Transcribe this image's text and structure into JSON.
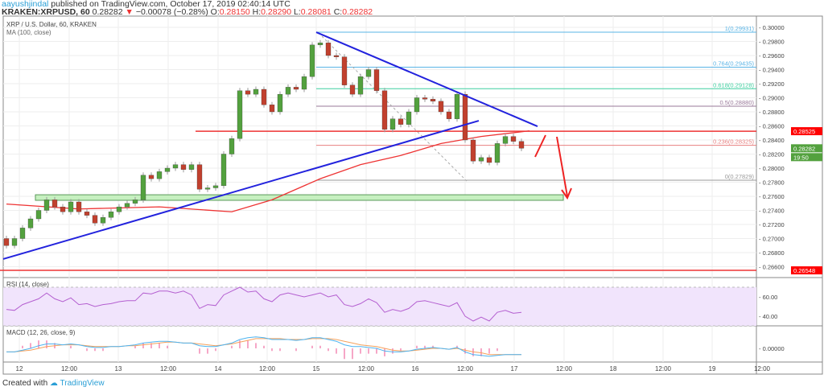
{
  "header": {
    "user": "aayushjindal",
    "published": " published on TradingView.com, October 17, 2019 02:40:14 UTC",
    "symbol": "KRAKEN:XRPUSD, 60",
    "last": "0.28282",
    "arrow": "▼",
    "change": "−0.00078 (−0.28%)",
    "o_label": "O:",
    "o": "0.28150",
    "h_label": "H:",
    "h": "0.28290",
    "l_label": "L:",
    "l": "0.28081",
    "c_label": "C:",
    "c": "0.28282"
  },
  "footer": {
    "created": "Created with",
    "brand": "TradingView"
  },
  "colors": {
    "up": "#53a13e",
    "down": "#c1402e",
    "ma": "#ee3333",
    "trend": "#2222dd",
    "rsi": "#b45fd0",
    "macd": "#4db3f0",
    "signal": "#f5a15c",
    "hist": "#ee4f8f"
  },
  "chart_data": {
    "type": "candlestick",
    "title": "XRP / U.S. Dollar, 60, KRAKEN",
    "ma_label": "MA (100, close)",
    "interval_note": "closes sampled every 2 hours",
    "ylim": [
      0.264,
      0.302
    ],
    "y_ticks": [
      "0.30000",
      "0.29800",
      "0.29600",
      "0.29400",
      "0.29200",
      "0.29000",
      "0.28800",
      "0.28600",
      "0.28400",
      "0.28200",
      "0.28000",
      "0.27800",
      "0.27600",
      "0.27400",
      "0.27200",
      "0.27000",
      "0.26800",
      "0.26600"
    ],
    "x_ticks": [
      "12",
      "12:00",
      "13",
      "12:00",
      "14",
      "12:00",
      "15",
      "12:00",
      "16",
      "12:00",
      "17",
      "12:00",
      "18",
      "12:00",
      "19",
      "12:00"
    ],
    "closes": [
      0.269,
      0.27,
      0.2715,
      0.2728,
      0.274,
      0.2755,
      0.2745,
      0.2738,
      0.2752,
      0.2738,
      0.2733,
      0.2722,
      0.273,
      0.2738,
      0.2745,
      0.275,
      0.2755,
      0.279,
      0.2785,
      0.2795,
      0.28,
      0.2805,
      0.2798,
      0.2805,
      0.277,
      0.2772,
      0.2775,
      0.282,
      0.2842,
      0.291,
      0.2905,
      0.2912,
      0.289,
      0.288,
      0.2905,
      0.2915,
      0.2912,
      0.293,
      0.2975,
      0.2978,
      0.296,
      0.2958,
      0.2918,
      0.2905,
      0.293,
      0.294,
      0.291,
      0.2855,
      0.287,
      0.2862,
      0.288,
      0.29,
      0.2898,
      0.2895,
      0.288,
      0.287,
      0.2905,
      0.284,
      0.281,
      0.2815,
      0.2808,
      0.2835,
      0.2845,
      0.2838,
      0.28282
    ],
    "first_open": 0.27,
    "ma100": [
      [
        0,
        0.2749
      ],
      [
        9,
        0.2742
      ],
      [
        19,
        0.2745
      ],
      [
        28,
        0.2738
      ],
      [
        33,
        0.2755
      ],
      [
        39,
        0.2785
      ],
      [
        44,
        0.2805
      ],
      [
        49,
        0.2818
      ],
      [
        54,
        0.2835
      ],
      [
        59,
        0.2845
      ],
      [
        65,
        0.2853
      ]
    ],
    "trendlines": [
      {
        "name": "ascending-support",
        "from": [
          -0.4,
          0.26709
        ],
        "to": [
          58.7,
          0.28674
        ]
      },
      {
        "name": "descending-resistance",
        "from": [
          38.5,
          0.29931
        ],
        "to": [
          66,
          0.28594
        ]
      }
    ],
    "horizontal_levels": [
      {
        "price": 0.28525,
        "label": "0.28525",
        "from_index": 23.5
      },
      {
        "price": 0.26548,
        "label": "0.26548",
        "from_index": -1
      }
    ],
    "support_zone": [
      0.27543,
      0.27622
    ],
    "fibonacci": [
      {
        "label": "1(0.29931)",
        "price": 0.29931,
        "color": "#5ab4e6"
      },
      {
        "label": "0.764(0.29435)",
        "price": 0.29435,
        "color": "#5ab4e6"
      },
      {
        "label": "0.618(0.29128)",
        "price": 0.29128,
        "color": "#3fcfa0"
      },
      {
        "label": "0.5(0.28880)",
        "price": 0.2888,
        "color": "#9a7a9a"
      },
      {
        "label": "0.236(0.28325)",
        "price": 0.28325,
        "color": "#e88080"
      },
      {
        "label": "0(0.27829)",
        "price": 0.27829,
        "color": "#999999"
      }
    ],
    "last_price_label": "0.28282",
    "countdown": "19:50",
    "rsi": {
      "label": "RSI (14, close)",
      "ticks": [
        "60.00",
        "40.00"
      ],
      "band": [
        30,
        70
      ],
      "values": [
        47,
        46,
        52,
        55,
        58,
        64,
        58,
        55,
        59,
        52,
        53,
        50,
        52,
        53,
        55,
        56,
        56,
        64,
        63,
        66,
        66,
        64,
        66,
        62,
        48,
        52,
        51,
        62,
        66,
        70,
        65,
        66,
        58,
        55,
        62,
        64,
        62,
        60,
        62,
        64,
        60,
        62,
        52,
        50,
        53,
        58,
        54,
        44,
        47,
        45,
        48,
        55,
        56,
        54,
        52,
        50,
        54,
        40,
        35,
        39,
        35,
        44,
        46,
        43,
        44
      ]
    },
    "macd": {
      "label": "MACD (12, 26, close, 9)",
      "tick": "0.00000",
      "macd": [
        -0.0004,
        -0.0004,
        -0.0002,
        0.0,
        0.0003,
        0.0005,
        0.0005,
        0.0004,
        0.0005,
        0.0004,
        0.0002,
        0.0001,
        0.0001,
        0.0002,
        0.0002,
        0.0003,
        0.0004,
        0.0006,
        0.0007,
        0.0008,
        0.0008,
        0.0007,
        0.0006,
        0.0006,
        0.0003,
        0.0002,
        0.0002,
        0.0004,
        0.0006,
        0.001,
        0.0012,
        0.0013,
        0.0012,
        0.001,
        0.001,
        0.001,
        0.0009,
        0.001,
        0.0012,
        0.0012,
        0.001,
        0.0008,
        0.0004,
        0.0002,
        0.0002,
        0.0001,
        0.0,
        -0.0003,
        -0.0004,
        -0.0004,
        -0.0003,
        -0.0001,
        0.0,
        0.0001,
        0.0,
        -0.0001,
        0.0001,
        -0.0004,
        -0.0007,
        -0.0008,
        -0.0009,
        -0.0008,
        -0.0007,
        -0.0007,
        -0.0007
      ],
      "signal": [
        -0.0004,
        -0.0004,
        -0.0003,
        -0.0002,
        0.0,
        0.0002,
        0.0003,
        0.0004,
        0.0004,
        0.0004,
        0.0003,
        0.0002,
        0.0002,
        0.0002,
        0.0002,
        0.0003,
        0.0003,
        0.0004,
        0.0005,
        0.0006,
        0.0007,
        0.0007,
        0.0006,
        0.0006,
        0.0005,
        0.0004,
        0.0003,
        0.0004,
        0.0005,
        0.0007,
        0.0009,
        0.0011,
        0.0011,
        0.0011,
        0.0011,
        0.001,
        0.001,
        0.001,
        0.0011,
        0.0011,
        0.0011,
        0.001,
        0.0008,
        0.0006,
        0.0004,
        0.0003,
        0.0002,
        0.0,
        -0.0002,
        -0.0003,
        -0.0003,
        -0.0002,
        -0.0001,
        0.0,
        0.0,
        -0.0001,
        0.0,
        -0.0002,
        -0.0004,
        -0.0005,
        -0.0007,
        -0.0007,
        -0.0007,
        -0.0007,
        -0.0007
      ]
    }
  }
}
